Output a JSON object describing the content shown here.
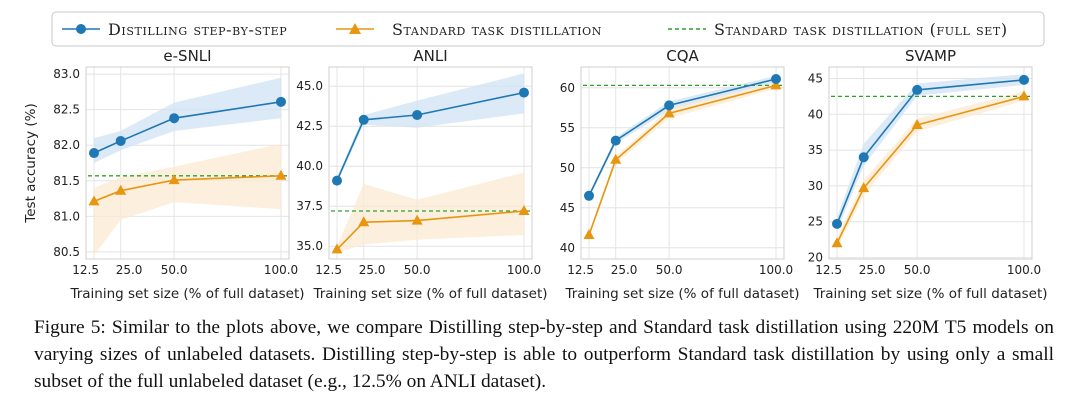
{
  "legend": {
    "items": [
      {
        "label": "Distilling step-by-step",
        "color": "#1f77b4",
        "marker": "circle",
        "style": "solid"
      },
      {
        "label": "Standard task distillation",
        "color": "#e8960f",
        "marker": "triangle",
        "style": "solid"
      },
      {
        "label": "Standard task distillation (full set)",
        "color": "#2ca02c",
        "marker": "none",
        "style": "dashed"
      }
    ]
  },
  "colors": {
    "distill": "#1f77b4",
    "standard": "#e8960f",
    "fullset": "#2ca02c",
    "distill_band": "#cfe3f3",
    "standard_band": "#fbe9d2"
  },
  "chart_data": [
    {
      "type": "line",
      "title": "e-SNLI",
      "xlabel": "Training set size (% of full dataset)",
      "ylabel": "Test accuracy (%)",
      "x": [
        12.5,
        25.0,
        50.0,
        100.0
      ],
      "xticks": [
        "12.5",
        "25.0",
        "50.0",
        "100.0"
      ],
      "ylim": [
        80.4,
        83.1
      ],
      "yticks": [
        80.5,
        81.0,
        81.5,
        82.0,
        82.5,
        83.0
      ],
      "ytick_labels": [
        "80.5",
        "81.0",
        "81.5",
        "82.0",
        "82.5",
        "83.0"
      ],
      "series": [
        {
          "name": "Distilling step-by-step",
          "values": [
            81.89,
            82.06,
            82.38,
            82.61
          ],
          "band_low": [
            81.75,
            81.93,
            82.2,
            82.38
          ],
          "band_high": [
            82.1,
            82.2,
            82.6,
            82.95
          ]
        },
        {
          "name": "Standard task distillation",
          "values": [
            81.21,
            81.36,
            81.51,
            81.57
          ],
          "band_low": [
            80.45,
            80.95,
            81.2,
            81.1
          ],
          "band_high": [
            81.4,
            81.55,
            81.7,
            82.02
          ]
        }
      ],
      "reference": {
        "name": "Standard task distillation (full set)",
        "value": 81.57
      },
      "grid": true
    },
    {
      "type": "line",
      "title": "ANLI",
      "xlabel": "Training set size (% of full dataset)",
      "ylabel": "",
      "x": [
        12.5,
        25.0,
        50.0,
        100.0
      ],
      "xticks": [
        "12.5",
        "25.0",
        "50.0",
        "100.0"
      ],
      "ylim": [
        34.2,
        46.2
      ],
      "yticks": [
        35.0,
        37.5,
        40.0,
        42.5,
        45.0
      ],
      "ytick_labels": [
        "35.0",
        "37.5",
        "40.0",
        "42.5",
        "45.0"
      ],
      "series": [
        {
          "name": "Distilling step-by-step",
          "values": [
            39.1,
            42.9,
            43.2,
            44.6
          ],
          "band_low": [
            38.9,
            42.6,
            42.4,
            43.3
          ],
          "band_high": [
            39.3,
            43.2,
            44.1,
            45.8
          ]
        },
        {
          "name": "Standard task distillation",
          "values": [
            34.8,
            36.5,
            36.6,
            37.2
          ],
          "band_low": [
            34.6,
            35.1,
            35.4,
            35.7
          ],
          "band_high": [
            35.0,
            38.9,
            37.9,
            39.6
          ]
        }
      ],
      "reference": {
        "name": "Standard task distillation (full set)",
        "value": 37.2
      },
      "grid": true
    },
    {
      "type": "line",
      "title": "CQA",
      "xlabel": "Training set size (% of full dataset)",
      "ylabel": "",
      "x": [
        12.5,
        25.0,
        50.0,
        100.0
      ],
      "xticks": [
        "12.5",
        "25.0",
        "50.0",
        "100.0"
      ],
      "ylim": [
        38.6,
        62.6
      ],
      "yticks": [
        40,
        45,
        50,
        55,
        60
      ],
      "ytick_labels": [
        "40",
        "45",
        "50",
        "55",
        "60"
      ],
      "series": [
        {
          "name": "Distilling step-by-step",
          "values": [
            46.5,
            53.4,
            57.8,
            61.1
          ],
          "band_low": [
            46.2,
            53.0,
            57.2,
            60.6
          ],
          "band_high": [
            46.8,
            53.8,
            58.3,
            61.5
          ]
        },
        {
          "name": "Standard task distillation",
          "values": [
            41.6,
            51.0,
            56.8,
            60.3
          ],
          "band_low": [
            41.3,
            50.5,
            56.2,
            59.9
          ],
          "band_high": [
            41.9,
            51.4,
            57.4,
            60.7
          ]
        }
      ],
      "reference": {
        "name": "Standard task distillation (full set)",
        "value": 60.3
      },
      "grid": true
    },
    {
      "type": "line",
      "title": "SVAMP",
      "xlabel": "Training set size (% of full dataset)",
      "ylabel": "",
      "x": [
        12.5,
        25.0,
        50.0,
        100.0
      ],
      "xticks": [
        "12.5",
        "25.0",
        "50.0",
        "100.0"
      ],
      "ylim": [
        19.8,
        46.6
      ],
      "yticks": [
        20,
        25,
        30,
        35,
        40,
        45
      ],
      "ytick_labels": [
        "20",
        "25",
        "30",
        "35",
        "40",
        "45"
      ],
      "series": [
        {
          "name": "Distilling step-by-step",
          "values": [
            24.7,
            34.0,
            43.4,
            44.8
          ],
          "band_low": [
            23.8,
            32.8,
            42.6,
            44.1
          ],
          "band_high": [
            25.6,
            35.9,
            44.3,
            45.6
          ]
        },
        {
          "name": "Standard task distillation",
          "values": [
            22.0,
            29.7,
            38.5,
            42.5
          ],
          "band_low": [
            21.3,
            28.7,
            37.6,
            41.9
          ],
          "band_high": [
            22.7,
            30.8,
            39.4,
            43.2
          ]
        }
      ],
      "reference": {
        "name": "Standard task distillation (full set)",
        "value": 42.5
      },
      "grid": true
    }
  ],
  "caption": "Figure 5: Similar to the plots above, we compare Distilling step-by-step and Standard task distillation using 220M T5 models on varying sizes of unlabeled datasets. Distilling step-by-step is able to outperform Standard task distillation by using only a small subset of the full unlabeled dataset (e.g., 12.5% on ANLI dataset)."
}
